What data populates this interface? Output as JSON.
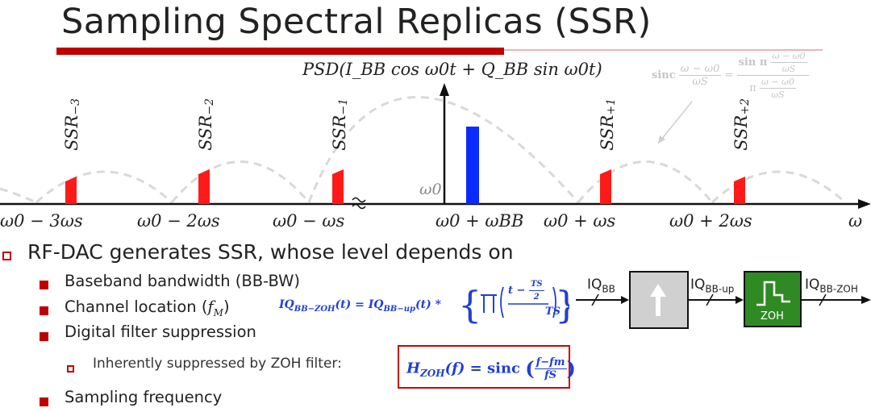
{
  "title": "Sampling Spectral Replicas (SSR)",
  "psd_label": "PSD(I_BB cos ω0t + Q_BB sin ω0t)",
  "sinc_note": {
    "lhs_word": "sinc",
    "lhs_num": "ω − ω0",
    "lhs_den": "ωS",
    "rhs_num_prefix": "sin π",
    "rhs_num_inner": "ω − ω0",
    "rhs_num_den": "ωS",
    "rhs_den_prefix": "π",
    "rhs_den_num": "ω − ω0",
    "rhs_den_den": "ωS"
  },
  "replica_labels": [
    {
      "base": "SSR",
      "sub": "−3"
    },
    {
      "base": "SSR",
      "sub": "−2"
    },
    {
      "base": "SSR",
      "sub": "−1"
    },
    {
      "base": "SSR",
      "sub": "+1"
    },
    {
      "base": "SSR",
      "sub": "+2"
    }
  ],
  "axis_labels": [
    "ω0 − 3ωs",
    "ω0 − 2ωs",
    "ω0 − ωs",
    "ω0 + ωBB",
    "ω0 + ωs",
    "ω0 + 2ωs",
    "ω"
  ],
  "carrier_label": "ω0",
  "colors": {
    "accent_red": "#c00000",
    "replica_red": "#ff1a1a",
    "main_band_blue": "#0a2bff",
    "equation_blue": "#1f3fd6",
    "zoh_green": "#2f8a23",
    "upsampler_gray": "#d0d0d0"
  },
  "bullets": {
    "level1": "RF-DAC generates SSR, whose level depends on",
    "items": [
      {
        "text": "Baseband bandwidth (BB-BW)"
      },
      {
        "text": "Channel location (",
        "var": "f",
        "var_sub": "M",
        "text_end": ")"
      },
      {
        "text": "Digital filter suppression"
      },
      {
        "text": "Sampling frequency"
      }
    ],
    "sub_item": "Inherently suppressed by ZOH filter:"
  },
  "equations": {
    "iq_zoh": {
      "lhs": "IQ",
      "lhs_sub": "BB−ZOH",
      "lhs_arg": "(t) = ",
      "rhs": "IQ",
      "rhs_sub": "BB−up",
      "rhs_arg": "(t) * ",
      "frac_num_left": "t − ",
      "frac_num_inner_num": "TS",
      "frac_num_inner_den": "2",
      "frac_den": "TS"
    },
    "h_zoh": {
      "lhs": "H",
      "lhs_sub": "ZOH",
      "lhs_arg": "(f) = ",
      "func": "sinc",
      "frac_num": "f−fm",
      "frac_den": "fS"
    }
  },
  "block_diagram": {
    "input_label": "IQ",
    "input_sub": "BB",
    "mid_label": "IQ",
    "mid_sub": "BB-up",
    "output_label": "IQ",
    "output_sub": "BB-ZOH",
    "upsample_icon": "up-arrow-icon",
    "zoh_block_label": "ZOH",
    "zoh_icon": "staircase-icon"
  }
}
